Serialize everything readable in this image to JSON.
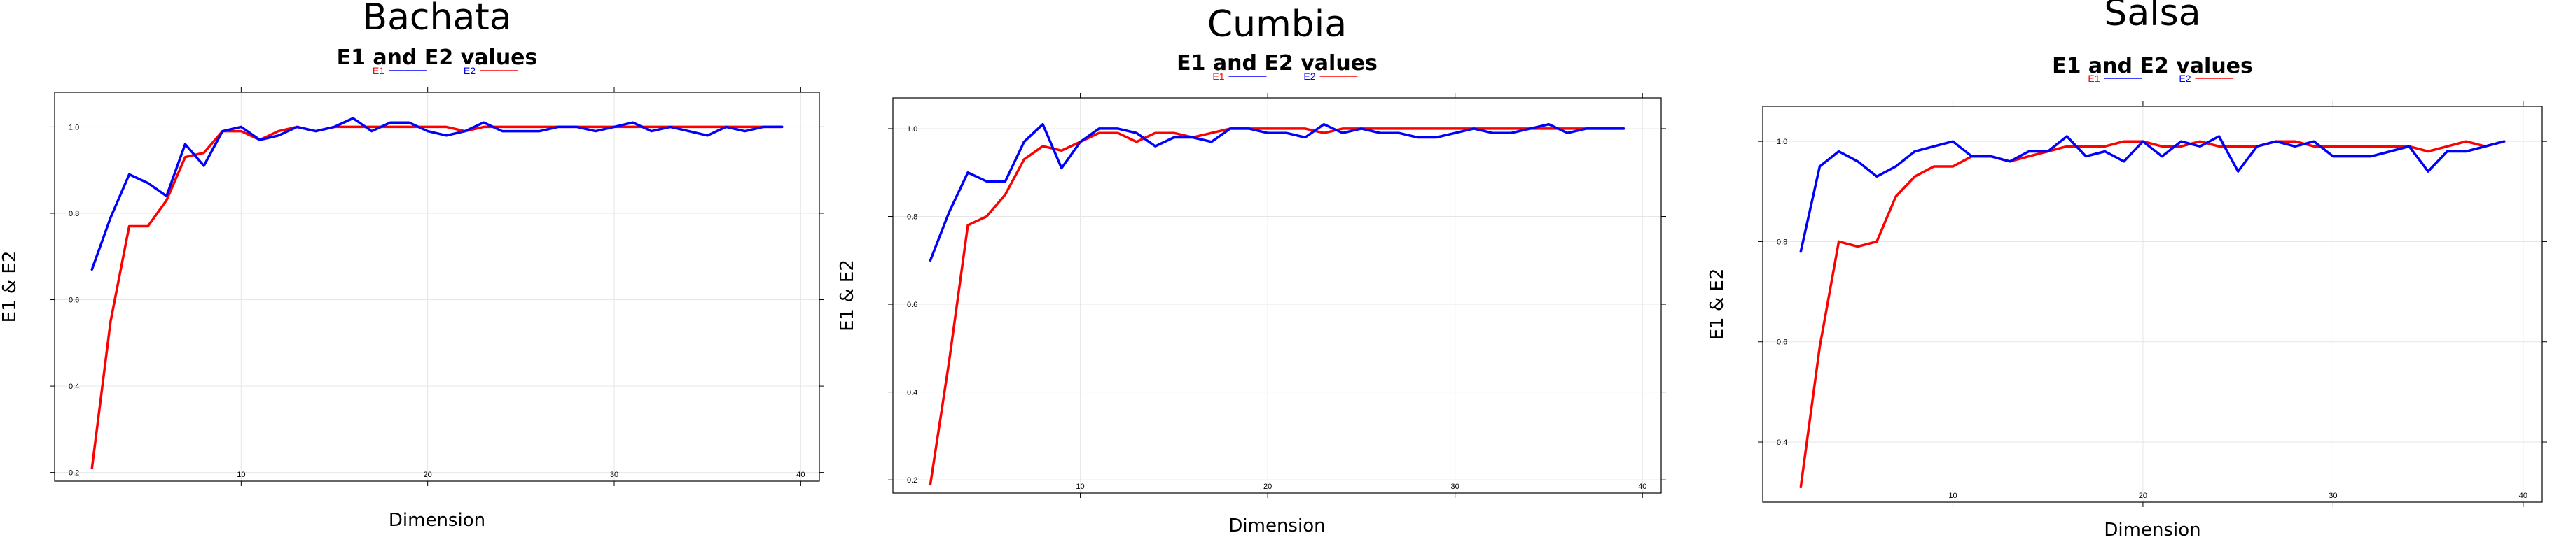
{
  "colors": {
    "E1": "#ff0000",
    "E2": "#0000ff"
  },
  "chart_data": [
    {
      "type": "line",
      "title": "Bachata",
      "subtitle": "E1 and E2 values",
      "xlabel": "Dimension",
      "ylabel": "E1 & E2",
      "legend": [
        "E1",
        "E2"
      ],
      "legend_position": "top",
      "grid": true,
      "xlim": [
        0,
        41
      ],
      "ylim": [
        0.18,
        1.08
      ],
      "xticks": [
        10,
        20,
        30,
        40
      ],
      "yticks": [
        0.2,
        0.4,
        0.6,
        0.8,
        1.0
      ],
      "ytick_labels": [
        "0.2",
        "0.4",
        "0.6",
        "0.8",
        "1.0"
      ],
      "x": [
        2,
        3,
        4,
        5,
        6,
        7,
        8,
        9,
        10,
        11,
        12,
        13,
        14,
        15,
        16,
        17,
        18,
        19,
        20,
        21,
        22,
        23,
        24,
        25,
        26,
        27,
        28,
        29,
        30,
        31,
        32,
        33,
        34,
        35,
        36,
        37,
        38,
        39
      ],
      "series": [
        {
          "name": "E1",
          "values": [
            0.21,
            0.55,
            0.77,
            0.77,
            0.83,
            0.93,
            0.94,
            0.99,
            0.99,
            0.97,
            0.99,
            1.0,
            0.99,
            1.0,
            1.0,
            1.0,
            1.0,
            1.0,
            1.0,
            1.0,
            0.99,
            1.0,
            1.0,
            1.0,
            1.0,
            1.0,
            1.0,
            1.0,
            1.0,
            1.0,
            1.0,
            1.0,
            1.0,
            1.0,
            1.0,
            1.0,
            1.0,
            1.0
          ]
        },
        {
          "name": "E2",
          "values": [
            0.67,
            0.79,
            0.89,
            0.87,
            0.84,
            0.96,
            0.91,
            0.99,
            1.0,
            0.97,
            0.98,
            1.0,
            0.99,
            1.0,
            1.02,
            0.99,
            1.01,
            1.01,
            0.99,
            0.98,
            0.99,
            1.01,
            0.99,
            0.99,
            0.99,
            1.0,
            1.0,
            0.99,
            1.0,
            1.01,
            0.99,
            1.0,
            0.99,
            0.98,
            1.0,
            0.99,
            1.0,
            1.0
          ]
        }
      ]
    },
    {
      "type": "line",
      "title": "Cumbia",
      "subtitle": "E1 and E2 values",
      "xlabel": "Dimension",
      "ylabel": "E1 & E2",
      "legend": [
        "E1",
        "E2"
      ],
      "legend_position": "top",
      "grid": true,
      "xlim": [
        0,
        41
      ],
      "ylim": [
        0.17,
        1.07
      ],
      "xticks": [
        10,
        20,
        30,
        40
      ],
      "yticks": [
        0.2,
        0.4,
        0.6,
        0.8,
        1.0
      ],
      "ytick_labels": [
        "0.2",
        "0.4",
        "0.6",
        "0.8",
        "1.0"
      ],
      "x": [
        2,
        3,
        4,
        5,
        6,
        7,
        8,
        9,
        10,
        11,
        12,
        13,
        14,
        15,
        16,
        17,
        18,
        19,
        20,
        21,
        22,
        23,
        24,
        25,
        26,
        27,
        28,
        29,
        30,
        31,
        32,
        33,
        34,
        35,
        36,
        37,
        38,
        39
      ],
      "series": [
        {
          "name": "E1",
          "values": [
            0.19,
            0.47,
            0.78,
            0.8,
            0.85,
            0.93,
            0.96,
            0.95,
            0.97,
            0.99,
            0.99,
            0.97,
            0.99,
            0.99,
            0.98,
            0.99,
            1.0,
            1.0,
            1.0,
            1.0,
            1.0,
            0.99,
            1.0,
            1.0,
            1.0,
            1.0,
            1.0,
            1.0,
            1.0,
            1.0,
            1.0,
            1.0,
            1.0,
            1.0,
            1.0,
            1.0,
            1.0,
            1.0
          ]
        },
        {
          "name": "E2",
          "values": [
            0.7,
            0.81,
            0.9,
            0.88,
            0.88,
            0.97,
            1.01,
            0.91,
            0.97,
            1.0,
            1.0,
            0.99,
            0.96,
            0.98,
            0.98,
            0.97,
            1.0,
            1.0,
            0.99,
            0.99,
            0.98,
            1.01,
            0.99,
            1.0,
            0.99,
            0.99,
            0.98,
            0.98,
            0.99,
            1.0,
            0.99,
            0.99,
            1.0,
            1.01,
            0.99,
            1.0,
            1.0,
            1.0
          ]
        }
      ]
    },
    {
      "type": "line",
      "title": "Salsa",
      "subtitle": "E1 and E2 values",
      "xlabel": "Dimension",
      "ylabel": "E1 & E2",
      "legend": [
        "E1",
        "E2"
      ],
      "legend_position": "top",
      "grid": true,
      "xlim": [
        0,
        41
      ],
      "ylim": [
        0.28,
        1.07
      ],
      "xticks": [
        10,
        20,
        30,
        40
      ],
      "yticks": [
        0.4,
        0.6,
        0.8,
        1.0
      ],
      "ytick_labels": [
        "0.4",
        "0.6",
        "0.8",
        "1.0"
      ],
      "x": [
        2,
        3,
        4,
        5,
        6,
        7,
        8,
        9,
        10,
        11,
        12,
        13,
        14,
        15,
        16,
        17,
        18,
        19,
        20,
        21,
        22,
        23,
        24,
        25,
        26,
        27,
        28,
        29,
        30,
        31,
        32,
        33,
        34,
        35,
        36,
        37,
        38,
        39
      ],
      "series": [
        {
          "name": "E1",
          "values": [
            0.31,
            0.59,
            0.8,
            0.79,
            0.8,
            0.89,
            0.93,
            0.95,
            0.95,
            0.97,
            0.97,
            0.96,
            0.97,
            0.98,
            0.99,
            0.99,
            0.99,
            1.0,
            1.0,
            0.99,
            0.99,
            1.0,
            0.99,
            0.99,
            0.99,
            1.0,
            1.0,
            0.99,
            0.99,
            0.99,
            0.99,
            0.99,
            0.99,
            0.98,
            0.99,
            1.0,
            0.99,
            1.0
          ]
        },
        {
          "name": "E2",
          "values": [
            0.78,
            0.95,
            0.98,
            0.96,
            0.93,
            0.95,
            0.98,
            0.99,
            1.0,
            0.97,
            0.97,
            0.96,
            0.98,
            0.98,
            1.01,
            0.97,
            0.98,
            0.96,
            1.0,
            0.97,
            1.0,
            0.99,
            1.01,
            0.94,
            0.99,
            1.0,
            0.99,
            1.0,
            0.97,
            0.97,
            0.97,
            0.98,
            0.99,
            0.94,
            0.98,
            0.98,
            0.99,
            1.0
          ]
        }
      ]
    }
  ]
}
